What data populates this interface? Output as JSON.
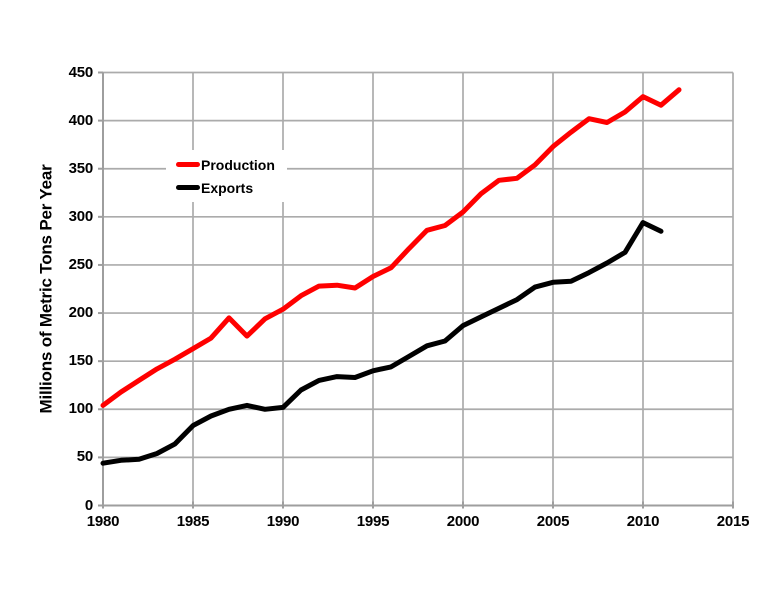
{
  "chart_data": {
    "type": "line",
    "title": "",
    "xlabel": "",
    "ylabel": "Millions of Metric Tons Per Year",
    "xlim": [
      1980,
      2015
    ],
    "ylim": [
      0,
      450
    ],
    "x_ticks": [
      1980,
      1985,
      1990,
      1995,
      2000,
      2005,
      2010,
      2015
    ],
    "y_ticks": [
      0,
      50,
      100,
      150,
      200,
      250,
      300,
      350,
      400,
      450
    ],
    "grid": true,
    "legend_position": "inside-upper-left",
    "background_color": "#ffffff",
    "gridline_color": "#ababab",
    "series": [
      {
        "name": "Production",
        "color": "#ff0000",
        "x": [
          1980,
          1981,
          1982,
          1983,
          1984,
          1985,
          1986,
          1987,
          1988,
          1989,
          1990,
          1991,
          1992,
          1993,
          1994,
          1995,
          1996,
          1997,
          1998,
          1999,
          2000,
          2001,
          2002,
          2003,
          2004,
          2005,
          2006,
          2007,
          2008,
          2009,
          2010,
          2011,
          2012
        ],
        "values": [
          104,
          118,
          130,
          142,
          152,
          163,
          174,
          195,
          176,
          194,
          204,
          218,
          228,
          229,
          226,
          238,
          247,
          267,
          286,
          291,
          305,
          324,
          338,
          340,
          354,
          373,
          388,
          402,
          398,
          409,
          425,
          416,
          432
        ]
      },
      {
        "name": "Exports",
        "color": "#000000",
        "x": [
          1980,
          1981,
          1982,
          1983,
          1984,
          1985,
          1986,
          1987,
          1988,
          1989,
          1990,
          1991,
          1992,
          1993,
          1994,
          1995,
          1996,
          1997,
          1998,
          1999,
          2000,
          2001,
          2002,
          2003,
          2004,
          2005,
          2006,
          2007,
          2008,
          2009,
          2010,
          2011
        ],
        "values": [
          44,
          47,
          48,
          54,
          64,
          83,
          93,
          100,
          104,
          100,
          102,
          120,
          130,
          134,
          133,
          140,
          144,
          155,
          166,
          171,
          187,
          196,
          205,
          214,
          227,
          232,
          233,
          242,
          252,
          263,
          294,
          285
        ]
      }
    ]
  }
}
